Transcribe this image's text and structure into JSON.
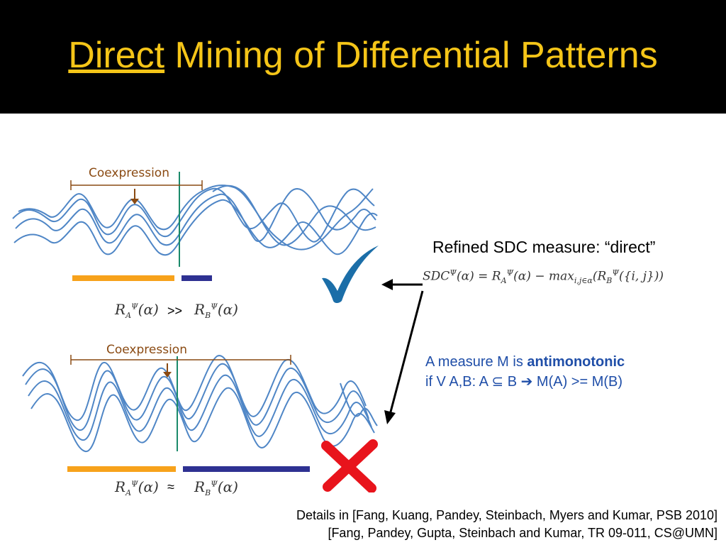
{
  "slide": {
    "title_underlined": "Direct",
    "title_rest": " Mining of Differential Patterns"
  },
  "figure_top": {
    "label": "Coexpression",
    "relation": ">>"
  },
  "figure_bottom": {
    "label": "Coexpression",
    "relation": "≈"
  },
  "right_panel": {
    "heading": "Refined SDC measure: “direct”",
    "def_line1_prefix": "A measure M is ",
    "def_line1_bold": "antimonotonic",
    "def_line2_a": "if V A,B: A ",
    "def_line2_subset": "⊆",
    "def_line2_b": " B ",
    "def_line2_arrow": "➔",
    "def_line2_c": " M(A) >= M(B)"
  },
  "footer": {
    "line1": "Details in [Fang, Kuang, Pandey, Steinbach, Myers and Kumar, PSB 2010]",
    "line2": "[Fang, Pandey, Gupta, Steinbach and Kumar, TR 09-011, CS@UMN]"
  },
  "marks": {
    "check": "checkmark-icon",
    "cross": "cross-icon"
  },
  "colors": {
    "title": "#f5c518",
    "wave": "#4f86c6",
    "orange_bar": "#f7a21b",
    "navy_bar": "#2e3192",
    "check": "#1b6ea8",
    "cross": "#e8141c",
    "text_blue": "#1f4ea8"
  }
}
